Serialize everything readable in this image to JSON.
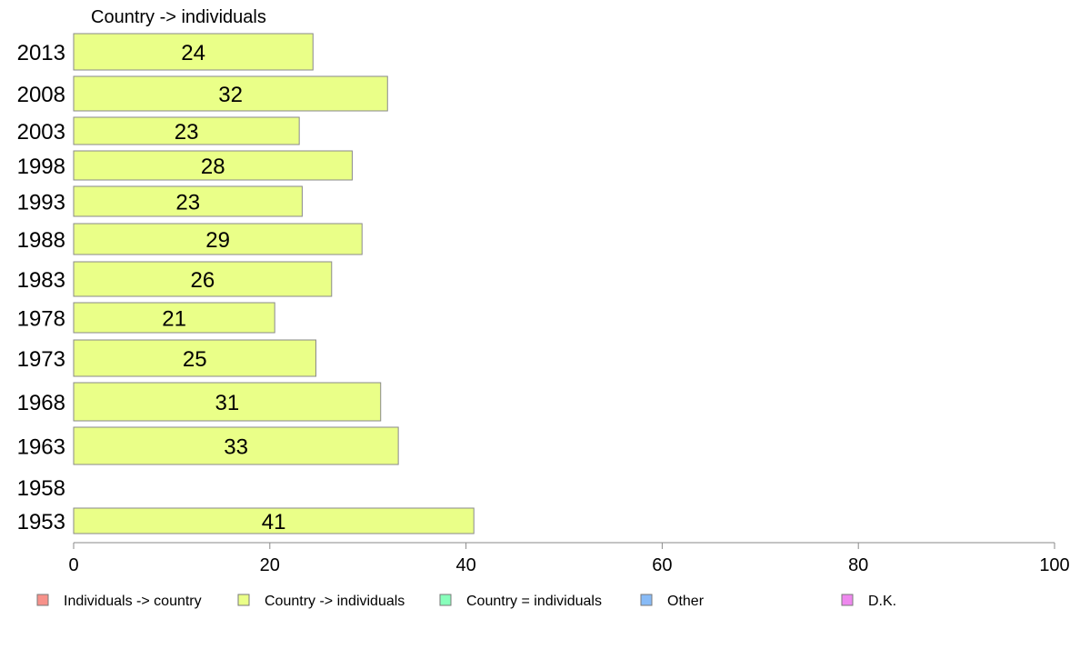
{
  "chart_data": {
    "type": "bar",
    "orientation": "horizontal",
    "title": "Country -> individuals",
    "categories": [
      "2013",
      "2008",
      "2003",
      "1998",
      "1993",
      "1988",
      "1983",
      "1978",
      "1973",
      "1968",
      "1963",
      "1958",
      "1953"
    ],
    "values": [
      24,
      32,
      23,
      28,
      23,
      29,
      26,
      21,
      25,
      31,
      33,
      null,
      41
    ],
    "bar_lengths": [
      24.4,
      32.0,
      23.0,
      28.4,
      23.3,
      29.4,
      26.3,
      20.5,
      24.7,
      31.3,
      33.1,
      null,
      40.8
    ],
    "series_name": "Country -> individuals",
    "series_color": "#eaff88",
    "xlim": [
      0,
      100
    ],
    "xticks": [
      "0",
      "20",
      "40",
      "60",
      "80",
      "100"
    ],
    "grid": false,
    "legend": {
      "placement": "bottom",
      "items": [
        {
          "label": "Individuals -> country",
          "color": "#f7918a"
        },
        {
          "label": "Country -> individuals",
          "color": "#eaff88"
        },
        {
          "label": "Country = individuals",
          "color": "#88ffbb"
        },
        {
          "label": "Other",
          "color": "#88bbf7"
        },
        {
          "label": "D.K.",
          "color": "#ee88ee"
        }
      ]
    }
  }
}
